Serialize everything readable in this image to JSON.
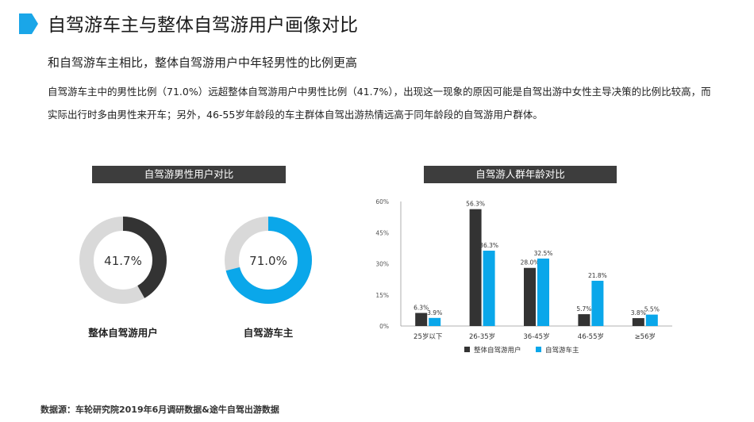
{
  "header": {
    "title": "自驾游车主与整体自驾游用户画像对比",
    "accent_color": "#1aa6e8"
  },
  "summary": {
    "headline": "和自驾游车主相比，整体自驾游用户中年轻男性的比例更高",
    "body": "自驾游车主中的男性比例（71.0%）远超整体自驾游用户中男性比例（41.7%），出现这一现象的原因可能是自驾出游中女性主导决策的比例比较高，而实际出行时多由男性来开车；另外，46-55岁年龄段的车主群体自驾出游热情远高于同年龄段的自驾游用户群体。"
  },
  "source": "数据源：车轮研究院2019年6月调研数据&途牛自驾出游数据",
  "chart_data": [
    {
      "type": "pie",
      "variant": "donut",
      "title": "自驾游男性用户对比",
      "charts": [
        {
          "name": "整体自驾游用户",
          "value": 41.7,
          "label": "41.7%",
          "color": "#333333",
          "remainder_color": "#d9d9d9"
        },
        {
          "name": "自驾游车主",
          "value": 71.0,
          "label": "71.0%",
          "color": "#0aa7ea",
          "remainder_color": "#d9d9d9"
        }
      ]
    },
    {
      "type": "bar",
      "title": "自驾游人群年龄对比",
      "categories": [
        "25岁以下",
        "26-35岁",
        "36-45岁",
        "46-55岁",
        "≥56岁"
      ],
      "series": [
        {
          "name": "整体自驾游用户",
          "color": "#333333",
          "values": [
            6.3,
            56.3,
            28.0,
            5.7,
            3.8
          ],
          "labels": [
            "6.3%",
            "56.3%",
            "28.0%",
            "5.7%",
            "3.8%"
          ]
        },
        {
          "name": "自驾游车主",
          "color": "#0aa7ea",
          "values": [
            3.9,
            36.3,
            32.5,
            21.8,
            5.5
          ],
          "labels": [
            "3.9%",
            "36.3%",
            "32.5%",
            "21.8%",
            "5.5%"
          ]
        }
      ],
      "ylim": [
        0,
        60
      ],
      "yticks": [
        "0%",
        "15%",
        "30%",
        "45%",
        "60%"
      ],
      "legend": "bottom"
    }
  ]
}
